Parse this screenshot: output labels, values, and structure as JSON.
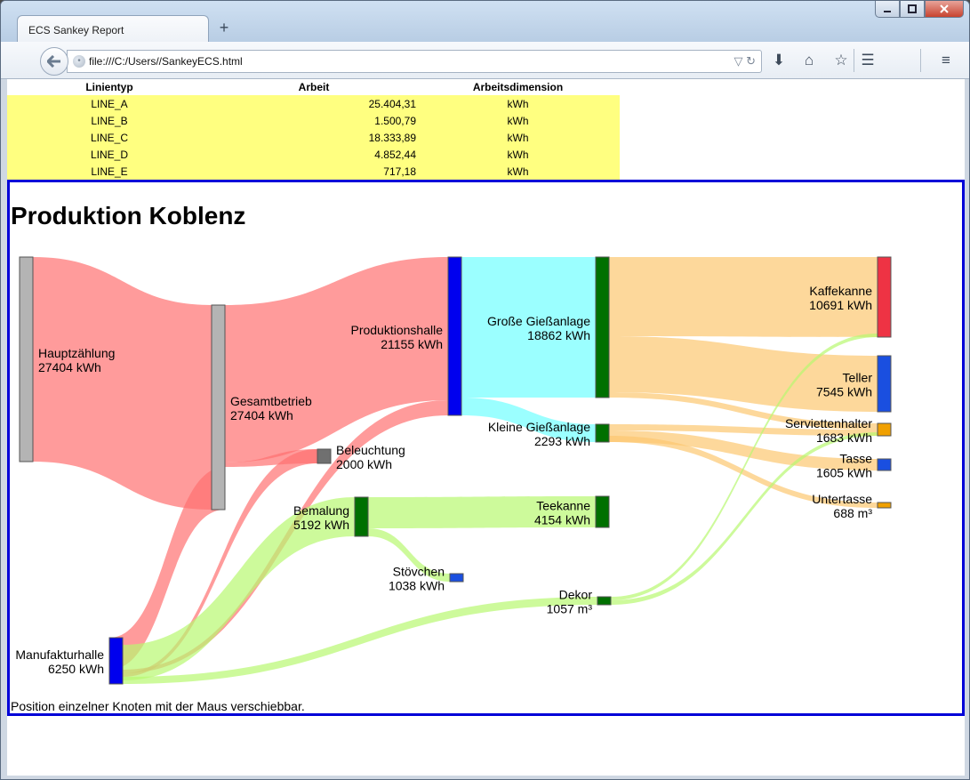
{
  "browser": {
    "tab_title": "ECS Sankey Report",
    "new_tab": "+",
    "url": "file:///C:/Users//SankeyECS.html"
  },
  "table": {
    "headers": [
      "Linientyp",
      "Arbeit",
      "Arbeitsdimension"
    ],
    "rows": [
      [
        "LINE_A",
        "25.404,31",
        "kWh"
      ],
      [
        "LINE_B",
        "1.500,79",
        "kWh"
      ],
      [
        "LINE_C",
        "18.333,89",
        "kWh"
      ],
      [
        "LINE_D",
        "4.852,44",
        "kWh"
      ],
      [
        "LINE_E",
        "717,18",
        "kWh"
      ]
    ]
  },
  "sankey": {
    "title": "Produktion Koblenz",
    "hint": "Position einzelner Knoten mit der Maus verschiebbar."
  },
  "chart_data": {
    "type": "sankey",
    "title": "Produktion Koblenz",
    "nodes": [
      {
        "id": "hz",
        "name": "Hauptzählung",
        "value": "27404 kWh",
        "color": "#b4b4b4"
      },
      {
        "id": "gb",
        "name": "Gesamtbetrieb",
        "value": "27404 kWh",
        "color": "#b4b4b4"
      },
      {
        "id": "ph",
        "name": "Produktionshalle",
        "value": "21155 kWh",
        "color": "#0000ee"
      },
      {
        "id": "bl",
        "name": "Beleuchtung",
        "value": "2000 kWh",
        "color": "#707070"
      },
      {
        "id": "bm",
        "name": "Bemalung",
        "value": "5192 kWh",
        "color": "#007000"
      },
      {
        "id": "mh",
        "name": "Manufakturhalle",
        "value": "6250 kWh",
        "color": "#0000ee"
      },
      {
        "id": "gg",
        "name": "Große Gießanlage",
        "value": "18862 kWh",
        "color": "#007000"
      },
      {
        "id": "kg",
        "name": "Kleine Gießanlage",
        "value": "2293 kWh",
        "color": "#007000"
      },
      {
        "id": "tk",
        "name": "Teekanne",
        "value": "4154 kWh",
        "color": "#007000"
      },
      {
        "id": "st",
        "name": "Stövchen",
        "value": "1038 kWh",
        "color": "#1a4fe0"
      },
      {
        "id": "dk",
        "name": "Dekor",
        "value": "1057 m³",
        "color": "#007000"
      },
      {
        "id": "kk",
        "name": "Kaffekanne",
        "value": "10691 kWh",
        "color": "#ee3344"
      },
      {
        "id": "te",
        "name": "Teller",
        "value": "7545 kWh",
        "color": "#1a4fe0"
      },
      {
        "id": "sh",
        "name": "Serviettenhalter",
        "value": "1683 kWh",
        "color": "#f0a000"
      },
      {
        "id": "ta",
        "name": "Tasse",
        "value": "1605 kWh",
        "color": "#1a4fe0"
      },
      {
        "id": "ut",
        "name": "Untertasse",
        "value": "688 m³",
        "color": "#f0a000"
      }
    ],
    "links": [
      {
        "source": "hz",
        "target": "gb",
        "value": 27404,
        "color": "#ff7070"
      },
      {
        "source": "gb",
        "target": "ph",
        "value": 21155,
        "color": "#ff7070"
      },
      {
        "source": "gb",
        "target": "bl",
        "value": 2000,
        "color": "#ff7070"
      },
      {
        "source": "gb",
        "target": "mh",
        "value": 4249,
        "color": "#ff7070"
      },
      {
        "source": "mh",
        "target": "ph",
        "value": 600,
        "color": "#ff7070"
      },
      {
        "source": "mh",
        "target": "bl",
        "value": 500,
        "color": "#ff7070"
      },
      {
        "source": "mh",
        "target": "bm",
        "value": 5192,
        "color": "#b8f870"
      },
      {
        "source": "mh",
        "target": "dk",
        "value": 1057,
        "color": "#b8f870"
      },
      {
        "source": "ph",
        "target": "gg",
        "value": 18862,
        "color": "#70ffff"
      },
      {
        "source": "ph",
        "target": "kg",
        "value": 2293,
        "color": "#70ffff"
      },
      {
        "source": "bm",
        "target": "tk",
        "value": 4154,
        "color": "#b8f870"
      },
      {
        "source": "bm",
        "target": "st",
        "value": 1038,
        "color": "#b8f870"
      },
      {
        "source": "gg",
        "target": "kk",
        "value": 10691,
        "color": "#fcc870"
      },
      {
        "source": "gg",
        "target": "te",
        "value": 7545,
        "color": "#fcc870"
      },
      {
        "source": "gg",
        "target": "sh",
        "value": 626,
        "color": "#fcc870"
      },
      {
        "source": "kg",
        "target": "sh",
        "value": 600,
        "color": "#fcc870"
      },
      {
        "source": "kg",
        "target": "ta",
        "value": 1605,
        "color": "#fcc870"
      },
      {
        "source": "kg",
        "target": "ut",
        "value": 688,
        "color": "#fcc870"
      },
      {
        "source": "dk",
        "target": "kk",
        "value": 600,
        "color": "#b8f870"
      },
      {
        "source": "dk",
        "target": "sh",
        "value": 457,
        "color": "#b8f870"
      }
    ]
  }
}
